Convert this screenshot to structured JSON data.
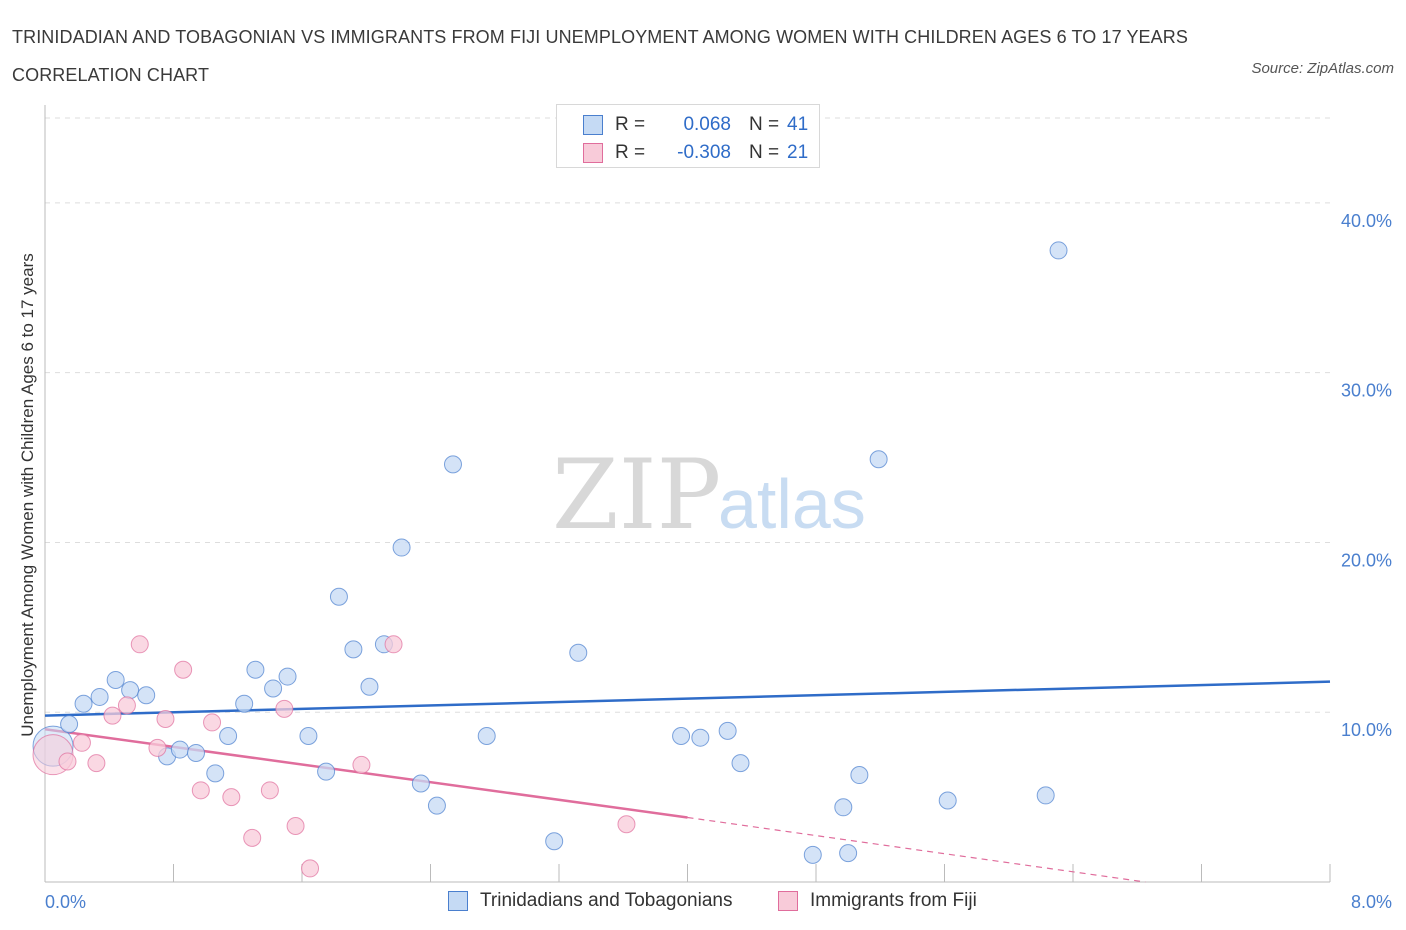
{
  "title": "TRINIDADIAN AND TOBAGONIAN VS IMMIGRANTS FROM FIJI UNEMPLOYMENT AMONG WOMEN WITH CHILDREN AGES 6 TO 17 YEARS CORRELATION CHART",
  "source": "Source: ZipAtlas.com",
  "watermark": {
    "zip": "ZIP",
    "atlas": "atlas"
  },
  "colors": {
    "blue": "#4a7fce",
    "blue_fill": "#c5daf4",
    "blue_line": "#2f6cc8",
    "pink": "#e06d9c",
    "pink_fill": "#f8cbd9",
    "grid": "#dddddd",
    "axis": "#bbbbbb"
  },
  "legend_top": [
    {
      "r_label": "R =",
      "r_value": "0.068",
      "n_label": "N =",
      "n_value": "41"
    },
    {
      "r_label": "R =",
      "r_value": "-0.308",
      "n_label": "N =",
      "n_value": "21"
    }
  ],
  "chart_data": {
    "type": "scatter",
    "title": "TRINIDADIAN AND TOBAGONIAN VS IMMIGRANTS FROM FIJI UNEMPLOYMENT AMONG WOMEN WITH CHILDREN AGES 6 TO 17 YEARS CORRELATION CHART",
    "xlabel": "",
    "ylabel": "Unemployment Among Women with Children Ages 6 to 17 years",
    "xlim": [
      0,
      8
    ],
    "ylim": [
      0,
      40
    ],
    "x_tick_labels": [
      "0.0%",
      "8.0%"
    ],
    "y_ticks": [
      10,
      20,
      30,
      40
    ],
    "y_tick_labels": [
      "10.0%",
      "20.0%",
      "30.0%",
      "40.0%"
    ],
    "grid": true,
    "legend_position": "bottom",
    "series": [
      {
        "name": "Trinidadians and Tobagonians",
        "r": 0.068,
        "n": 41,
        "trend": {
          "x": [
            0,
            8
          ],
          "y": [
            9.8,
            11.8
          ],
          "style": "solid"
        },
        "points": [
          {
            "x": 0.05,
            "y": 8.0,
            "large": true
          },
          {
            "x": 0.15,
            "y": 9.3
          },
          {
            "x": 0.24,
            "y": 10.5
          },
          {
            "x": 0.34,
            "y": 10.9
          },
          {
            "x": 0.44,
            "y": 11.9
          },
          {
            "x": 0.53,
            "y": 11.3
          },
          {
            "x": 0.63,
            "y": 11.0
          },
          {
            "x": 0.76,
            "y": 7.4
          },
          {
            "x": 0.84,
            "y": 7.8
          },
          {
            "x": 0.94,
            "y": 7.6
          },
          {
            "x": 1.06,
            "y": 6.4
          },
          {
            "x": 1.14,
            "y": 8.6
          },
          {
            "x": 1.24,
            "y": 10.5
          },
          {
            "x": 1.31,
            "y": 12.5
          },
          {
            "x": 1.42,
            "y": 11.4
          },
          {
            "x": 1.51,
            "y": 12.1
          },
          {
            "x": 1.64,
            "y": 8.6
          },
          {
            "x": 1.75,
            "y": 6.5
          },
          {
            "x": 1.83,
            "y": 16.8
          },
          {
            "x": 1.92,
            "y": 13.7
          },
          {
            "x": 2.02,
            "y": 11.5
          },
          {
            "x": 2.11,
            "y": 14.0
          },
          {
            "x": 2.22,
            "y": 19.7
          },
          {
            "x": 2.34,
            "y": 5.8
          },
          {
            "x": 2.44,
            "y": 4.5
          },
          {
            "x": 2.54,
            "y": 24.6
          },
          {
            "x": 2.75,
            "y": 8.6
          },
          {
            "x": 3.17,
            "y": 2.4
          },
          {
            "x": 3.32,
            "y": 13.5
          },
          {
            "x": 3.96,
            "y": 8.6
          },
          {
            "x": 4.08,
            "y": 8.5
          },
          {
            "x": 4.25,
            "y": 8.9
          },
          {
            "x": 4.33,
            "y": 7.0
          },
          {
            "x": 4.78,
            "y": 1.6
          },
          {
            "x": 4.97,
            "y": 4.4
          },
          {
            "x": 5.0,
            "y": 1.7
          },
          {
            "x": 5.07,
            "y": 6.3
          },
          {
            "x": 5.19,
            "y": 24.9
          },
          {
            "x": 5.62,
            "y": 4.8
          },
          {
            "x": 6.23,
            "y": 5.1
          },
          {
            "x": 6.31,
            "y": 37.2
          }
        ]
      },
      {
        "name": "Immigrants from Fiji",
        "r": -0.308,
        "n": 21,
        "trend": {
          "x": [
            0,
            4.0
          ],
          "y": [
            9.0,
            3.8
          ],
          "style": "solid",
          "extension": {
            "x": [
              4.0,
              6.85
            ],
            "y": [
              3.8,
              0.0
            ],
            "style": "dashed"
          }
        },
        "points": [
          {
            "x": 0.05,
            "y": 7.5,
            "large": true
          },
          {
            "x": 0.14,
            "y": 7.1
          },
          {
            "x": 0.23,
            "y": 8.2
          },
          {
            "x": 0.32,
            "y": 7.0
          },
          {
            "x": 0.42,
            "y": 9.8
          },
          {
            "x": 0.51,
            "y": 10.4
          },
          {
            "x": 0.59,
            "y": 14.0
          },
          {
            "x": 0.7,
            "y": 7.9
          },
          {
            "x": 0.75,
            "y": 9.6
          },
          {
            "x": 0.86,
            "y": 12.5
          },
          {
            "x": 0.97,
            "y": 5.4
          },
          {
            "x": 1.04,
            "y": 9.4
          },
          {
            "x": 1.16,
            "y": 5.0
          },
          {
            "x": 1.29,
            "y": 2.6
          },
          {
            "x": 1.4,
            "y": 5.4
          },
          {
            "x": 1.49,
            "y": 10.2
          },
          {
            "x": 1.56,
            "y": 3.3
          },
          {
            "x": 1.65,
            "y": 0.8
          },
          {
            "x": 1.97,
            "y": 6.9
          },
          {
            "x": 2.17,
            "y": 14.0
          },
          {
            "x": 3.62,
            "y": 3.4
          }
        ]
      }
    ]
  }
}
